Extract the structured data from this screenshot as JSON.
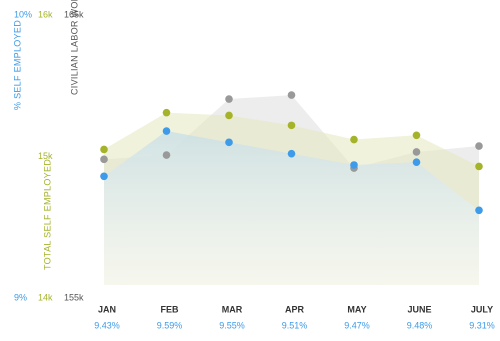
{
  "chart_data": {
    "type": "area",
    "categories": [
      "JAN",
      "FEB",
      "MAR",
      "APR",
      "MAY",
      "JUNE",
      "JULY"
    ],
    "series": [
      {
        "name": "% SELF EMPLOYED",
        "color": "#3d9be9",
        "axis": "y",
        "values": [
          9.43,
          9.59,
          9.55,
          9.51,
          9.47,
          9.48,
          9.31
        ],
        "value_labels": [
          "9.43%",
          "9.59%",
          "9.55%",
          "9.51%",
          "9.47%",
          "9.48%",
          "9.31%"
        ]
      },
      {
        "name": "TOTAL SELF EMPLOYED",
        "color": "#a5b32a",
        "axis": "y2",
        "values": [
          15050,
          15310,
          15290,
          15220,
          15120,
          15150,
          14930
        ]
      },
      {
        "name": "CIVILIAN LABOR WORK FORCE",
        "color": "#999999",
        "axis": "y3",
        "values": [
          159900,
          160050,
          162030,
          162170,
          159590,
          160160,
          160370
        ]
      }
    ],
    "ylim": [
      9,
      10
    ],
    "yticks": [
      {
        "value": 9,
        "label": "9%"
      },
      {
        "value": 10,
        "label": "10%"
      }
    ],
    "y2lim": [
      14000,
      16000
    ],
    "y2ticks": [
      {
        "value": 14000,
        "label": "14k"
      },
      {
        "value": 15000,
        "label": "15k"
      },
      {
        "value": 16000,
        "label": "16k"
      }
    ],
    "y3lim": [
      155000,
      165000
    ],
    "y3ticks": [
      {
        "value": 155000,
        "label": "155k"
      },
      {
        "value": 165000,
        "label": "165k"
      }
    ]
  }
}
